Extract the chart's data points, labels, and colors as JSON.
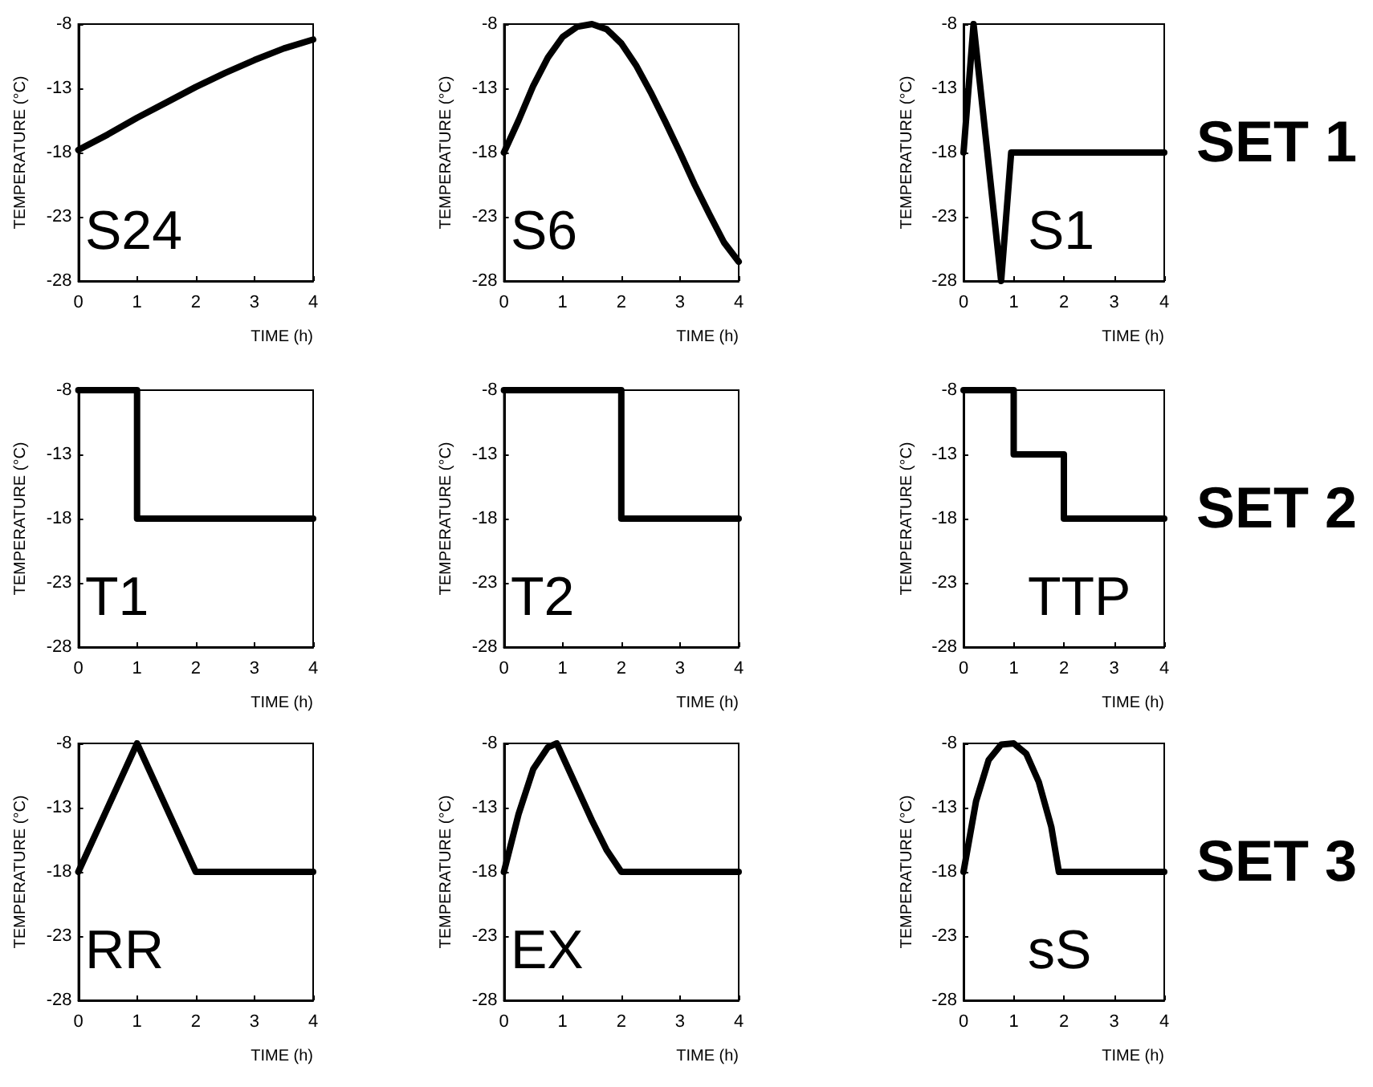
{
  "chart_data": [
    {
      "type": "line",
      "xlabel": "TIME (h)",
      "ylabel": "TEMPERATURE (°C)",
      "annotations": [
        "S24"
      ],
      "x": [
        0,
        0.5,
        1,
        1.5,
        2,
        2.5,
        3,
        3.5,
        4
      ],
      "series": [
        {
          "color": "#000000",
          "values": [
            -17.8,
            -16.6,
            -15.3,
            -14.1,
            -12.9,
            -11.8,
            -10.8,
            -9.9,
            -9.2
          ]
        }
      ],
      "xlim": [
        0,
        4
      ],
      "xticks": [
        0,
        1,
        2,
        3,
        4
      ],
      "ylim": [
        -28,
        -8
      ],
      "yticks": [
        -28,
        -23,
        -18,
        -13,
        -8
      ],
      "marker": "none",
      "line_style": "solid"
    },
    {
      "type": "line",
      "xlabel": "TIME (h)",
      "ylabel": "TEMPERATURE (°C)",
      "annotations": [
        "S6"
      ],
      "x": [
        0,
        0.25,
        0.5,
        0.75,
        1,
        1.25,
        1.5,
        1.75,
        2,
        2.25,
        2.5,
        2.75,
        3,
        3.25,
        3.5,
        3.75,
        4
      ],
      "series": [
        {
          "color": "#000000",
          "values": [
            -18,
            -15.5,
            -12.8,
            -10.6,
            -9,
            -8.2,
            -8,
            -8.4,
            -9.5,
            -11.2,
            -13.3,
            -15.6,
            -18,
            -20.5,
            -22.8,
            -25,
            -26.5
          ]
        }
      ],
      "xlim": [
        0,
        4
      ],
      "xticks": [
        0,
        1,
        2,
        3,
        4
      ],
      "ylim": [
        -28,
        -8
      ],
      "yticks": [
        -28,
        -23,
        -18,
        -13,
        -8
      ],
      "marker": "none",
      "line_style": "solid"
    },
    {
      "type": "line",
      "xlabel": "TIME (h)",
      "ylabel": "TEMPERATURE (°C)",
      "annotations": [
        "S1",
        "SET 1"
      ],
      "x": [
        0,
        0.2,
        0.75,
        0.95,
        4
      ],
      "series": [
        {
          "color": "#000000",
          "values": [
            -18,
            -8,
            -28,
            -18,
            -18
          ]
        }
      ],
      "xlim": [
        0,
        4
      ],
      "xticks": [
        0,
        1,
        2,
        3,
        4
      ],
      "ylim": [
        -28,
        -8
      ],
      "yticks": [
        -28,
        -23,
        -18,
        -13,
        -8
      ],
      "marker": "none",
      "line_style": "solid"
    },
    {
      "type": "line",
      "xlabel": "TIME (h)",
      "ylabel": "TEMPERATURE (°C)",
      "annotations": [
        "T1"
      ],
      "x": [
        0,
        1,
        1,
        4
      ],
      "series": [
        {
          "color": "#000000",
          "values": [
            -8,
            -8,
            -18,
            -18
          ]
        }
      ],
      "xlim": [
        0,
        4
      ],
      "xticks": [
        0,
        1,
        2,
        3,
        4
      ],
      "ylim": [
        -28,
        -8
      ],
      "yticks": [
        -28,
        -23,
        -18,
        -13,
        -8
      ],
      "marker": "none",
      "line_style": "solid"
    },
    {
      "type": "line",
      "xlabel": "TIME (h)",
      "ylabel": "TEMPERATURE (°C)",
      "annotations": [
        "T2"
      ],
      "x": [
        0,
        2,
        2,
        4
      ],
      "series": [
        {
          "color": "#000000",
          "values": [
            -8,
            -8,
            -18,
            -18
          ]
        }
      ],
      "xlim": [
        0,
        4
      ],
      "xticks": [
        0,
        1,
        2,
        3,
        4
      ],
      "ylim": [
        -28,
        -8
      ],
      "yticks": [
        -28,
        -23,
        -18,
        -13,
        -8
      ],
      "marker": "none",
      "line_style": "solid"
    },
    {
      "type": "line",
      "xlabel": "TIME (h)",
      "ylabel": "TEMPERATURE (°C)",
      "annotations": [
        "TTP",
        "SET 2"
      ],
      "x": [
        0,
        1,
        1,
        2,
        2,
        4
      ],
      "series": [
        {
          "color": "#000000",
          "values": [
            -8,
            -8,
            -13,
            -13,
            -18,
            -18
          ]
        }
      ],
      "xlim": [
        0,
        4
      ],
      "xticks": [
        0,
        1,
        2,
        3,
        4
      ],
      "ylim": [
        -28,
        -8
      ],
      "yticks": [
        -28,
        -23,
        -18,
        -13,
        -8
      ],
      "marker": "none",
      "line_style": "solid"
    },
    {
      "type": "line",
      "xlabel": "TIME (h)",
      "ylabel": "TEMPERATURE (°C)",
      "annotations": [
        "RR"
      ],
      "x": [
        0,
        1,
        2,
        4
      ],
      "series": [
        {
          "color": "#000000",
          "values": [
            -18,
            -8,
            -18,
            -18
          ]
        }
      ],
      "xlim": [
        0,
        4
      ],
      "xticks": [
        0,
        1,
        2,
        3,
        4
      ],
      "ylim": [
        -28,
        -8
      ],
      "yticks": [
        -28,
        -23,
        -18,
        -13,
        -8
      ],
      "marker": "none",
      "line_style": "solid"
    },
    {
      "type": "line",
      "xlabel": "TIME (h)",
      "ylabel": "TEMPERATURE (°C)",
      "annotations": [
        "EX"
      ],
      "x": [
        0,
        0.25,
        0.5,
        0.75,
        0.9,
        1.25,
        1.5,
        1.75,
        2,
        4
      ],
      "series": [
        {
          "color": "#000000",
          "values": [
            -18,
            -13.5,
            -10,
            -8.3,
            -8,
            -11.5,
            -14,
            -16.3,
            -18,
            -18
          ]
        }
      ],
      "xlim": [
        0,
        4
      ],
      "xticks": [
        0,
        1,
        2,
        3,
        4
      ],
      "ylim": [
        -28,
        -8
      ],
      "yticks": [
        -28,
        -23,
        -18,
        -13,
        -8
      ],
      "marker": "none",
      "line_style": "solid"
    },
    {
      "type": "line",
      "xlabel": "TIME (h)",
      "ylabel": "TEMPERATURE (°C)",
      "annotations": [
        "sS",
        "SET 3"
      ],
      "x": [
        0,
        0.25,
        0.5,
        0.75,
        1,
        1.25,
        1.5,
        1.75,
        1.9,
        4
      ],
      "series": [
        {
          "color": "#000000",
          "values": [
            -18,
            -12.5,
            -9.3,
            -8.1,
            -8,
            -8.8,
            -11,
            -14.5,
            -18,
            -18
          ]
        }
      ],
      "xlim": [
        0,
        4
      ],
      "xticks": [
        0,
        1,
        2,
        3,
        4
      ],
      "ylim": [
        -28,
        -8
      ],
      "yticks": [
        -28,
        -23,
        -18,
        -13,
        -8
      ],
      "marker": "none",
      "line_style": "solid"
    }
  ]
}
